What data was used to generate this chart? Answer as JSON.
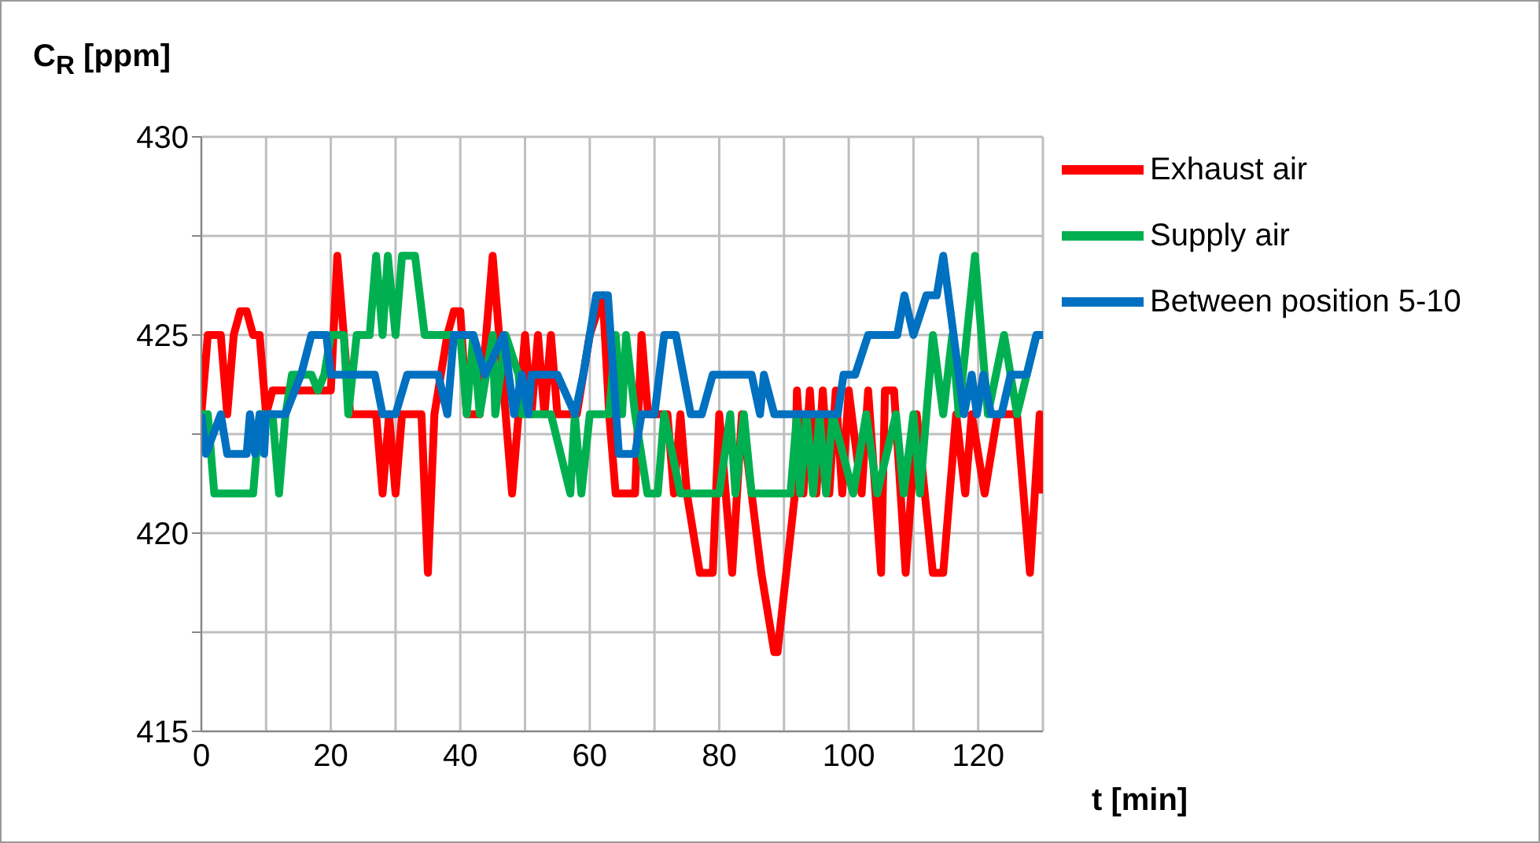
{
  "chart_data": {
    "type": "line",
    "xlabel": "t [min]",
    "ylabel": "C$_{R}$ [ppm]",
    "xlim": [
      0,
      130
    ],
    "ylim": [
      415,
      430
    ],
    "xticks": [
      0,
      {
        "value": 10,
        "label": null
      },
      20,
      {
        "value": 30,
        "label": null
      },
      40,
      {
        "value": 50,
        "label": null
      },
      60,
      {
        "value": 70,
        "label": null
      },
      80,
      {
        "value": 90,
        "label": null
      },
      100,
      {
        "value": 110,
        "label": null
      },
      120,
      {
        "value": 130,
        "label": null
      }
    ],
    "yticks": [
      415,
      {
        "value": 417.5,
        "label": null
      },
      420,
      {
        "value": 422.5,
        "label": null
      },
      425,
      {
        "value": 427.5,
        "label": null
      },
      430
    ],
    "grid": true,
    "legend": "right",
    "marker": "none",
    "line_style": "solid",
    "series": [
      {
        "name": "Exhaust air",
        "color": "#ff0000",
        "x": [
          0,
          1,
          3,
          4,
          5,
          6,
          7,
          8,
          9,
          10,
          11,
          13,
          20,
          21,
          22,
          23,
          27,
          28,
          29,
          30,
          31,
          34,
          35,
          36,
          38,
          39,
          40,
          41,
          43,
          45,
          46,
          47,
          48,
          49,
          50,
          51,
          52,
          53,
          54,
          55,
          58,
          60,
          62,
          63,
          64,
          67,
          68,
          69,
          72,
          73,
          74,
          75,
          77,
          79,
          80,
          82,
          83.5,
          85,
          86.5,
          88.5,
          89,
          91.7,
          92,
          93,
          94,
          95,
          96,
          97,
          98,
          99,
          100,
          102,
          103,
          105,
          105.6,
          107,
          108.8,
          110.5,
          113,
          114.6,
          116.6,
          118,
          119,
          121,
          123,
          126,
          128,
          129.5,
          130
        ],
        "values": [
          423,
          425,
          425,
          423,
          425,
          425.6,
          425.6,
          425,
          425,
          423,
          423.6,
          423.6,
          423.6,
          427,
          425,
          423,
          423,
          421,
          423,
          421,
          423,
          423,
          419,
          423,
          425,
          425.6,
          425.6,
          423,
          423,
          427,
          425,
          423,
          421,
          423,
          425,
          423,
          425,
          423,
          425,
          423,
          423,
          425,
          426,
          423,
          421,
          421,
          425,
          423,
          423,
          421,
          423,
          421,
          419,
          419,
          423,
          419,
          423,
          421,
          419,
          417,
          417,
          421,
          423.6,
          421,
          423.6,
          421,
          423.6,
          421,
          423.6,
          421,
          423.6,
          421,
          423.6,
          419,
          423.6,
          423.6,
          419,
          423,
          419,
          419,
          423,
          421,
          423,
          421,
          423,
          423,
          419,
          423,
          421
        ]
      },
      {
        "name": "Supply air",
        "color": "#00b050",
        "x": [
          0,
          1,
          2,
          8,
          9,
          11,
          12,
          13,
          14,
          17,
          18,
          19,
          20,
          22,
          22.7,
          24,
          26,
          27,
          28,
          28.8,
          30,
          31,
          33,
          34.5,
          37,
          40,
          41,
          42,
          43,
          45,
          45.4,
          47,
          49,
          49.5,
          54,
          57,
          57.7,
          58.7,
          60,
          63,
          64,
          65,
          65.6,
          67,
          68.9,
          70.5,
          71.5,
          74,
          80,
          81.7,
          82.5,
          83.8,
          85,
          91,
          92,
          92.5,
          93.5,
          94.5,
          95.5,
          96.5,
          97.5,
          100.7,
          102.7,
          104.4,
          107.3,
          108.5,
          110,
          111,
          113,
          114.6,
          116,
          117,
          119.5,
          121.5,
          124,
          126,
          129,
          130
        ],
        "values": [
          423,
          423,
          421,
          421,
          423,
          423,
          421,
          423,
          424,
          424,
          423.6,
          424,
          425,
          425,
          423,
          425,
          425,
          427,
          425,
          427,
          425,
          427,
          427,
          425,
          425,
          425,
          423,
          425,
          423,
          425,
          423,
          425,
          424,
          423,
          423,
          421,
          423,
          421,
          423,
          423,
          425,
          423,
          425,
          423,
          421,
          421,
          423,
          421,
          421,
          423,
          421,
          423,
          421,
          421,
          423,
          421,
          423,
          421,
          423,
          421,
          423,
          421,
          423,
          421,
          423,
          421,
          423,
          421,
          425,
          423,
          425,
          423,
          427,
          423,
          425,
          423,
          425,
          425
        ]
      },
      {
        "name": "Between position 5-10",
        "color": "#0070c0",
        "x": [
          0,
          0.7,
          3,
          4,
          7,
          7.5,
          8.3,
          9,
          9.7,
          10,
          13,
          15.4,
          17,
          19.3,
          20,
          26.8,
          28,
          30,
          31.8,
          36.6,
          38,
          39,
          41.5,
          42,
          43.8,
          46.7,
          48.3,
          49.5,
          50.5,
          51,
          55,
          57.7,
          59,
          61,
          62.8,
          64.5,
          67,
          68,
          70,
          71.5,
          73.3,
          75.6,
          77.3,
          79,
          85,
          86.3,
          86.9,
          88.5,
          98.3,
          99.2,
          101,
          103,
          107.5,
          108.6,
          110,
          112,
          113.6,
          114.6,
          117.8,
          119,
          119.8,
          120.8,
          122,
          123.6,
          125,
          127.5,
          129,
          130
        ],
        "values": [
          423,
          422,
          423,
          422,
          422,
          423,
          422,
          423,
          422,
          423,
          423,
          424,
          425,
          425,
          424,
          424,
          423,
          423,
          424,
          424,
          423,
          425,
          425,
          425,
          424,
          425,
          423,
          424,
          423,
          424,
          424,
          423,
          424,
          426,
          426,
          422,
          422,
          423,
          423,
          425,
          425,
          423,
          423,
          424,
          424,
          423,
          424,
          423,
          423,
          424,
          424,
          425,
          425,
          426,
          425,
          426,
          426,
          427,
          423,
          424,
          423,
          424,
          423,
          423,
          424,
          424,
          425,
          425
        ]
      }
    ]
  }
}
